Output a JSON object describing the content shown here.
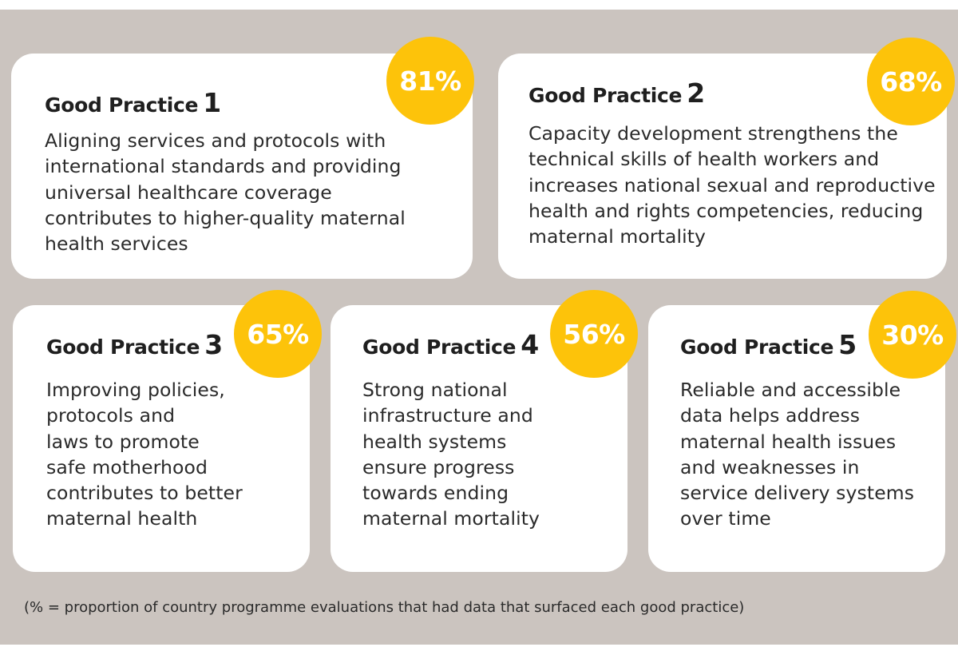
{
  "practices": [
    {
      "label": "Good Practice",
      "number": "1",
      "percent": "81%",
      "lines": [
        "Aligning services and protocols with",
        "international standards and providing",
        "universal healthcare coverage",
        "contributes to higher-quality maternal",
        "health services"
      ]
    },
    {
      "label": "Good Practice",
      "number": "2",
      "percent": "68%",
      "lines": [
        "Capacity development strengthens the",
        "technical skills of health workers and",
        "increases national sexual and reproductive",
        "health and rights competencies, reducing",
        "maternal mortality"
      ]
    },
    {
      "label": "Good Practice",
      "number": "3",
      "percent": "65%",
      "lines": [
        "Improving policies,",
        "protocols and",
        "laws to promote",
        "safe motherhood",
        "contributes to better",
        "maternal health"
      ]
    },
    {
      "label": "Good Practice",
      "number": "4",
      "percent": "56%",
      "lines": [
        "Strong national",
        "infrastructure and",
        "health systems",
        "ensure progress",
        "towards ending",
        "maternal mortality"
      ]
    },
    {
      "label": "Good Practice",
      "number": "5",
      "percent": "30%",
      "lines": [
        "Reliable and accessible",
        "data helps address",
        "maternal health issues",
        "and weaknesses in",
        "service delivery systems",
        "over time"
      ]
    }
  ],
  "footnote": "(% = proportion of country programme evaluations that had data that surfaced each good practice)",
  "colors": {
    "background": "#cbc4bf",
    "card": "#ffffff",
    "badge": "#fdc30a",
    "badge_text": "#ffffff"
  }
}
